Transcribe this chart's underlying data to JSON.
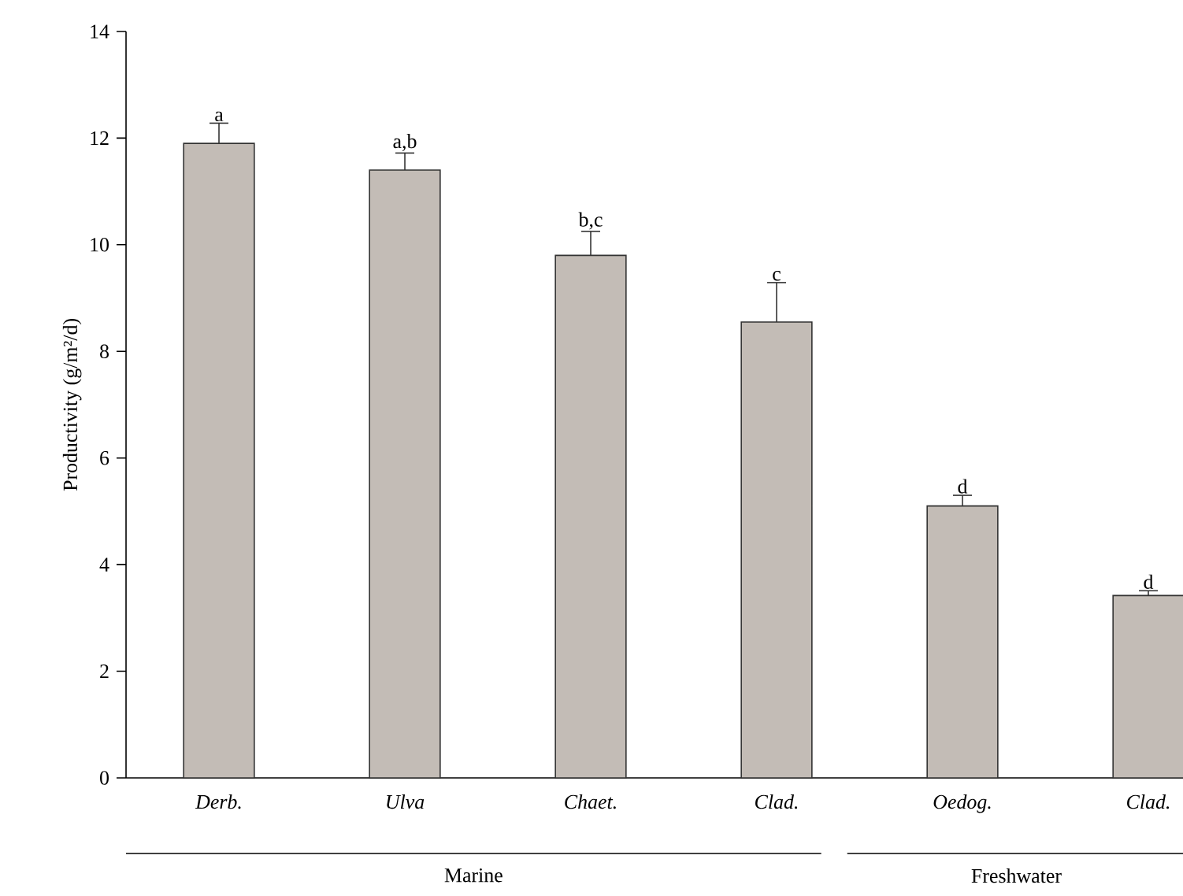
{
  "chart_data": {
    "type": "bar",
    "ylabel": "Productivity (g/m²/d)",
    "categories": [
      "Derb.",
      "Ulva",
      "Chaet.",
      "Clad.",
      "Oedog.",
      "Clad."
    ],
    "values": [
      11.9,
      11.4,
      9.8,
      8.55,
      5.1,
      3.42
    ],
    "errors": [
      0.38,
      0.32,
      0.45,
      0.74,
      0.2,
      0.09
    ],
    "color": "#c3bcb6",
    "ylim": [
      0,
      14
    ],
    "yticks": [
      0,
      2,
      4,
      6,
      8,
      10,
      12,
      14
    ],
    "annotations": [
      "a",
      "a,b",
      "b,c",
      "c",
      "d",
      "d",
      "Marine",
      "Freshwater"
    ]
  }
}
